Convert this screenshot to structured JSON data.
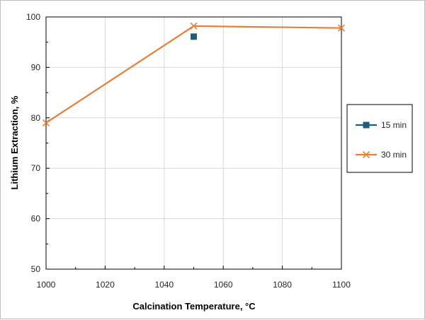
{
  "chart_data": {
    "type": "scatter",
    "title": "",
    "xlabel": "Calcination Temperature, °C",
    "ylabel": "Lithium Extraction, %",
    "xlim": [
      1000,
      1100
    ],
    "ylim": [
      50,
      100
    ],
    "x_ticks": [
      1000,
      1020,
      1040,
      1060,
      1080,
      1100
    ],
    "y_ticks": [
      50,
      60,
      70,
      80,
      90,
      100
    ],
    "grid": true,
    "legend_position": "right",
    "series": [
      {
        "name": "15 min",
        "marker": "square",
        "line": false,
        "color": "#1f5c7a",
        "points": [
          {
            "x": 1050,
            "y": 96.1
          }
        ]
      },
      {
        "name": "30 min",
        "marker": "x",
        "line": true,
        "color": "#e87d35",
        "points": [
          {
            "x": 1000,
            "y": 79.0
          },
          {
            "x": 1050,
            "y": 98.2
          },
          {
            "x": 1100,
            "y": 97.8
          }
        ]
      }
    ]
  }
}
